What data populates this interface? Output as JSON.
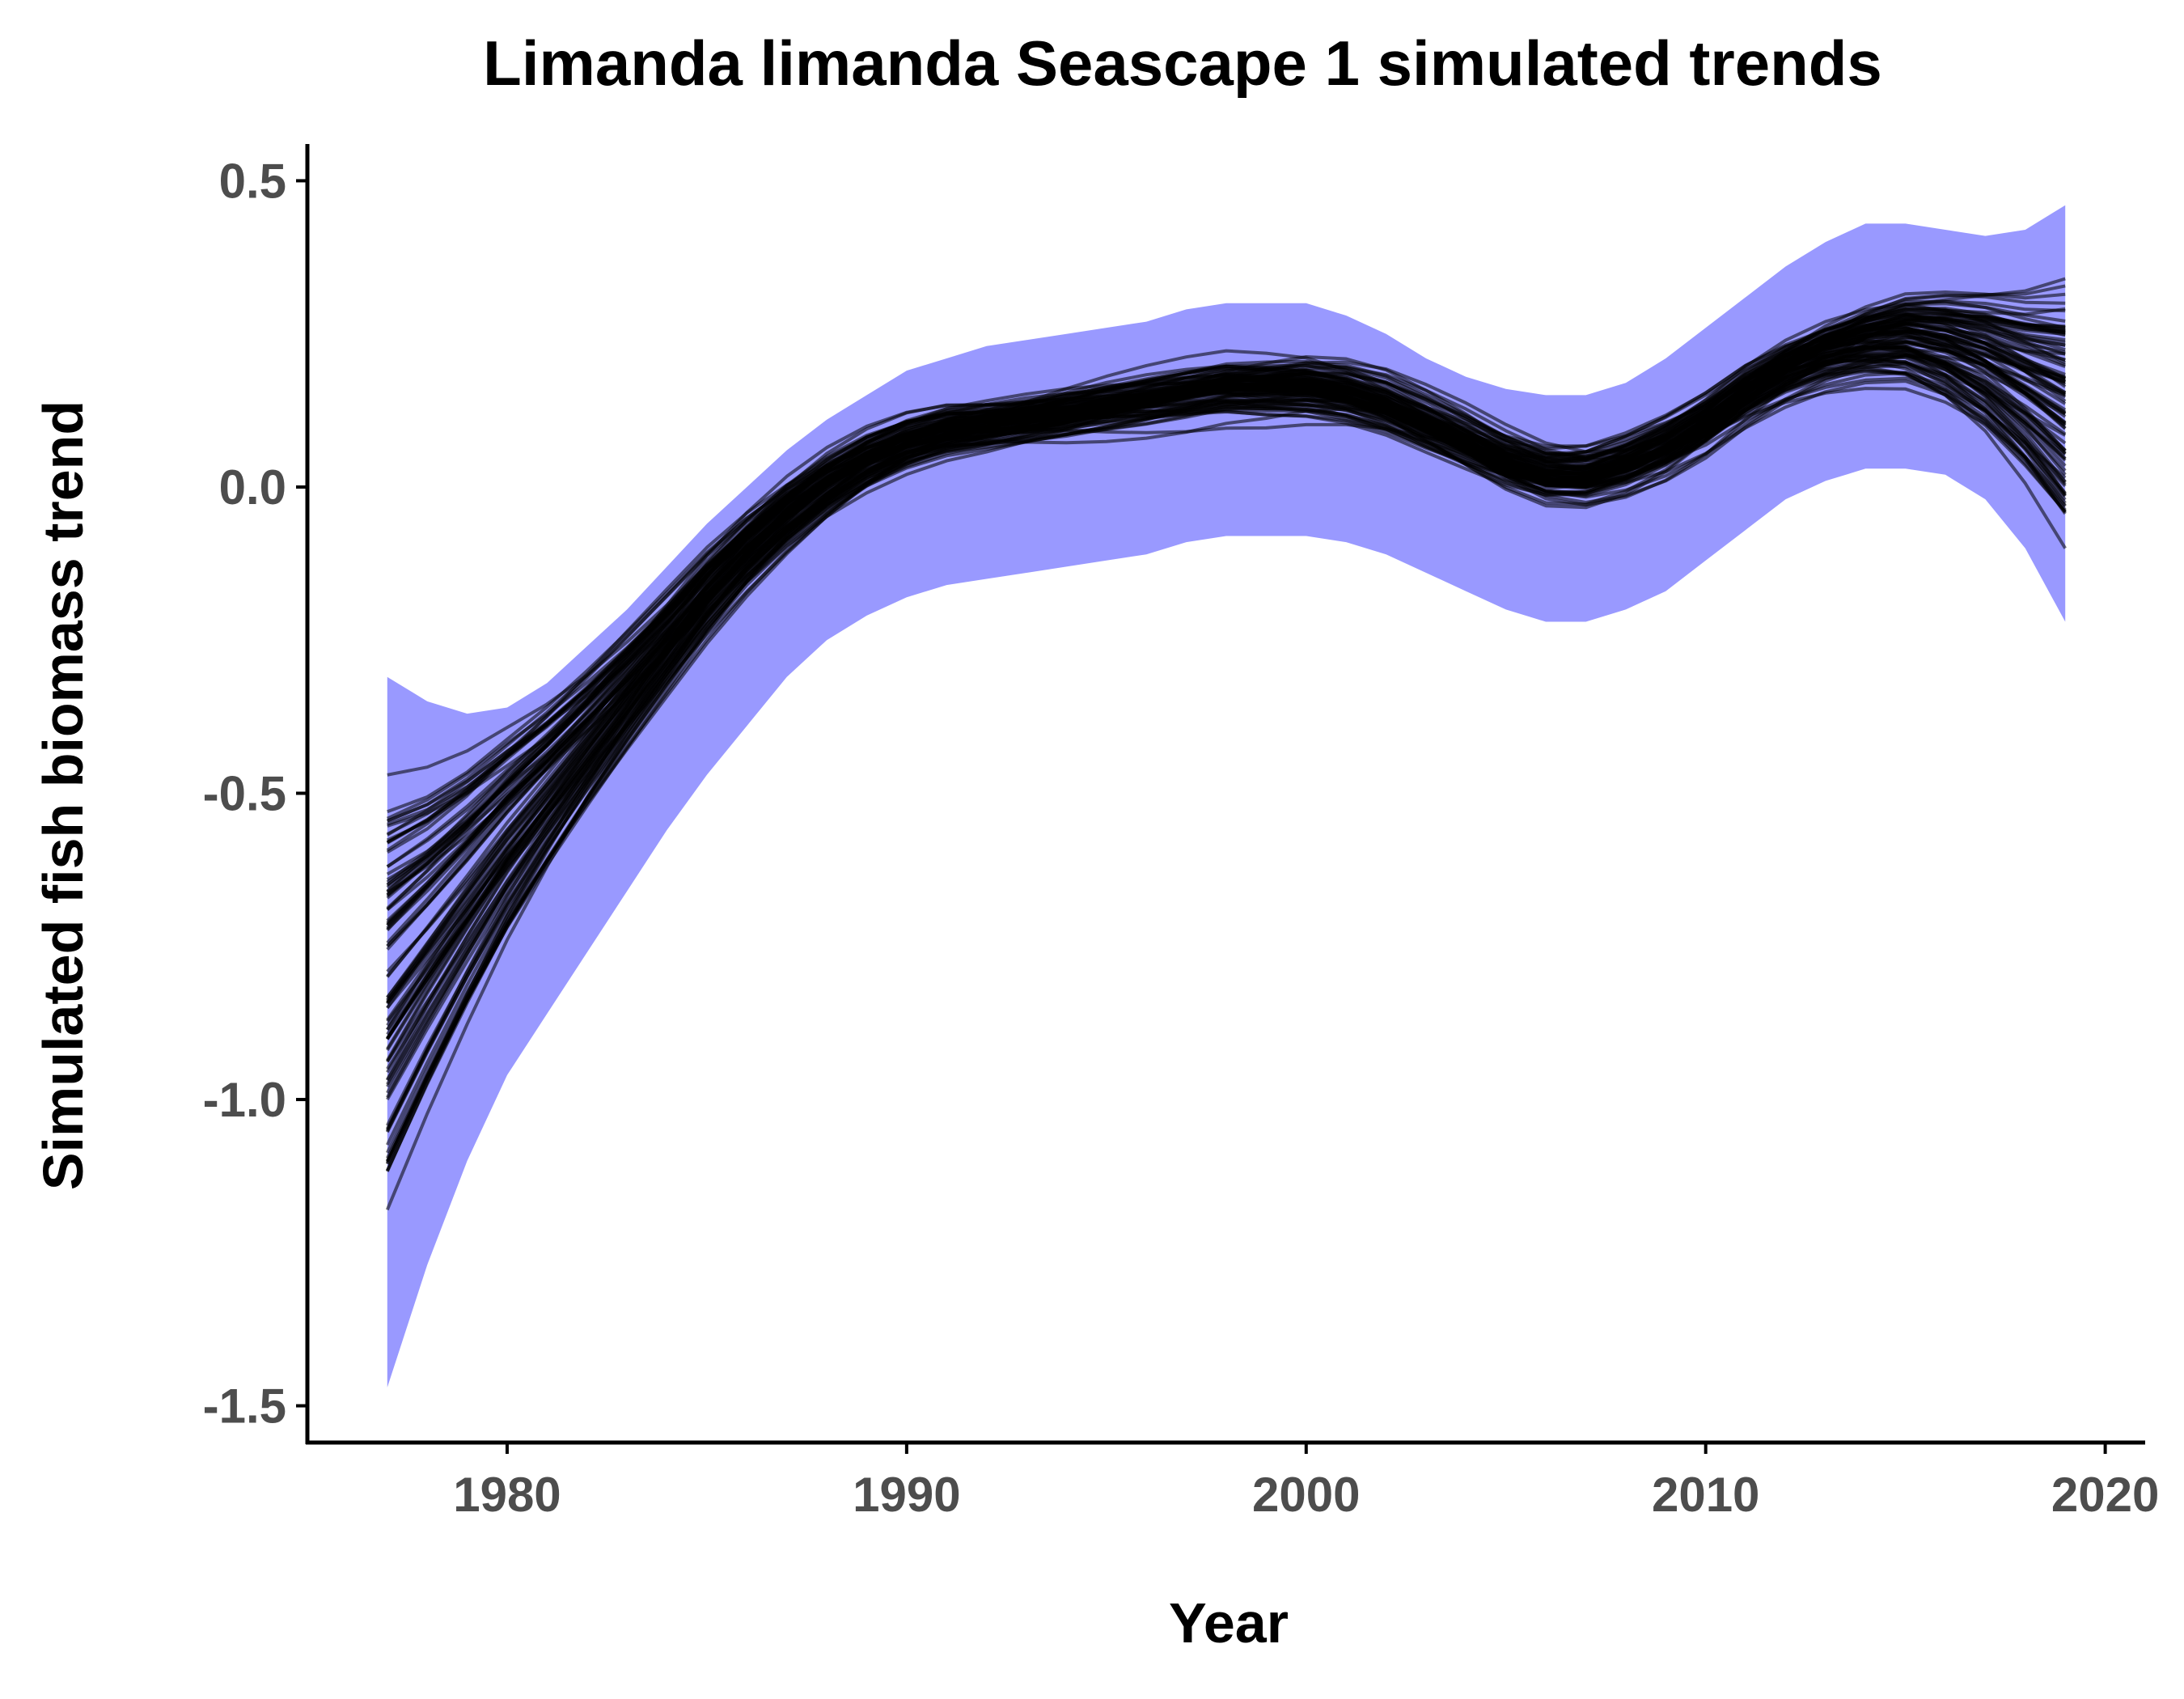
{
  "chart_data": {
    "type": "line",
    "title": "Limanda limanda Seascape 1 simulated trends",
    "xlabel": "Year",
    "ylabel": "Simulated fish biomass trend",
    "xlim": [
      1975.0,
      2021.0
    ],
    "ylim": [
      -1.56,
      0.56
    ],
    "x_ticks": [
      1980,
      1990,
      2000,
      2010,
      2020
    ],
    "x_tick_labels": [
      "1980",
      "1990",
      "2000",
      "2010",
      "2020"
    ],
    "y_ticks": [
      0.5,
      0.0,
      -0.5,
      -1.0,
      -1.5
    ],
    "y_tick_labels": [
      "0.5",
      "0.0",
      "-0.5",
      "-1.0",
      "-1.5"
    ],
    "grid": false,
    "legend": "none",
    "colors": {
      "band": "#9999ff",
      "line": "#000000",
      "axis": "#000000",
      "tick_label": "#4d4d4d"
    },
    "band": {
      "x": [
        1977,
        1978,
        1979,
        1980,
        1981,
        1982,
        1983,
        1984,
        1985,
        1986,
        1987,
        1988,
        1989,
        1990,
        1991,
        1992,
        1993,
        1994,
        1995,
        1996,
        1997,
        1998,
        1999,
        2000,
        2001,
        2002,
        2003,
        2004,
        2005,
        2006,
        2007,
        2008,
        2009,
        2010,
        2011,
        2012,
        2013,
        2014,
        2015,
        2016,
        2017,
        2018,
        2019
      ],
      "upper": [
        -0.31,
        -0.35,
        -0.37,
        -0.36,
        -0.32,
        -0.26,
        -0.2,
        -0.13,
        -0.06,
        0.0,
        0.06,
        0.11,
        0.15,
        0.19,
        0.21,
        0.23,
        0.24,
        0.25,
        0.26,
        0.27,
        0.29,
        0.3,
        0.3,
        0.3,
        0.28,
        0.25,
        0.21,
        0.18,
        0.16,
        0.15,
        0.15,
        0.17,
        0.21,
        0.26,
        0.31,
        0.36,
        0.4,
        0.43,
        0.43,
        0.42,
        0.41,
        0.42,
        0.46
      ],
      "lower": [
        -1.47,
        -1.27,
        -1.1,
        -0.96,
        -0.86,
        -0.76,
        -0.66,
        -0.56,
        -0.47,
        -0.39,
        -0.31,
        -0.25,
        -0.21,
        -0.18,
        -0.16,
        -0.15,
        -0.14,
        -0.13,
        -0.12,
        -0.11,
        -0.09,
        -0.08,
        -0.08,
        -0.08,
        -0.09,
        -0.11,
        -0.14,
        -0.17,
        -0.2,
        -0.22,
        -0.22,
        -0.2,
        -0.17,
        -0.12,
        -0.07,
        -0.02,
        0.01,
        0.03,
        0.03,
        0.02,
        -0.02,
        -0.1,
        -0.22
      ]
    },
    "mean_trend": {
      "x": [
        1977,
        1978,
        1979,
        1980,
        1981,
        1982,
        1983,
        1984,
        1985,
        1986,
        1987,
        1988,
        1989,
        1990,
        1991,
        1992,
        1993,
        1994,
        1995,
        1996,
        1997,
        1998,
        1999,
        2000,
        2001,
        2002,
        2003,
        2004,
        2005,
        2006,
        2007,
        2008,
        2009,
        2010,
        2011,
        2012,
        2013,
        2014,
        2015,
        2016,
        2017,
        2018,
        2019
      ],
      "y": [
        -0.85,
        -0.76,
        -0.67,
        -0.58,
        -0.5,
        -0.42,
        -0.34,
        -0.26,
        -0.18,
        -0.11,
        -0.05,
        0.0,
        0.04,
        0.07,
        0.09,
        0.1,
        0.11,
        0.12,
        0.13,
        0.14,
        0.15,
        0.16,
        0.16,
        0.16,
        0.15,
        0.13,
        0.1,
        0.07,
        0.04,
        0.02,
        0.02,
        0.04,
        0.07,
        0.11,
        0.16,
        0.2,
        0.23,
        0.25,
        0.26,
        0.25,
        0.23,
        0.2,
        0.17
      ]
    },
    "simulations": {
      "count": 100,
      "start_values": [
        -0.47,
        -0.53,
        -0.58,
        -0.62,
        -0.65,
        -0.69,
        -0.72,
        -0.75,
        -0.8,
        -0.85,
        -0.9,
        -0.95,
        -1.0,
        -1.05,
        -1.1,
        -1.18
      ],
      "end_values": [
        0.34,
        0.3,
        0.26,
        0.22,
        0.18,
        0.14,
        0.1,
        0.06,
        0.02,
        -0.03,
        -0.1
      ]
    }
  }
}
